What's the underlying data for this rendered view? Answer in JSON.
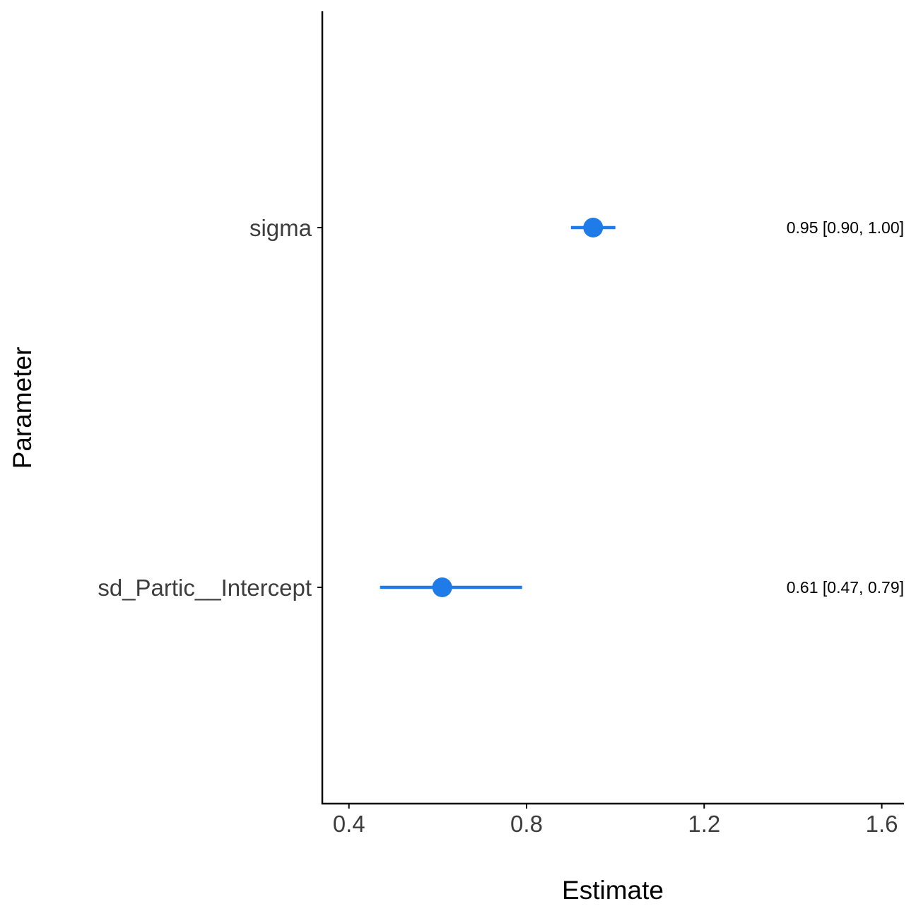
{
  "chart_data": {
    "type": "forest",
    "xlabel": "Estimate",
    "ylabel": "Parameter",
    "xlim": [
      0.34,
      1.65
    ],
    "x_ticks": [
      0.4,
      0.8,
      1.2,
      1.6
    ],
    "x_tick_labels": [
      "0.4",
      "0.8",
      "1.2",
      "1.6"
    ],
    "grid": false,
    "point_color": "#1e7be8",
    "axis_color": "#000000",
    "parameters": [
      {
        "name": "sigma",
        "estimate": 0.95,
        "ci_low": 0.9,
        "ci_high": 1.0,
        "label": "0.95 [0.90, 1.00]"
      },
      {
        "name": "sd_Partic__Intercept",
        "estimate": 0.61,
        "ci_low": 0.47,
        "ci_high": 0.79,
        "label": "0.61 [0.47, 0.79]"
      }
    ]
  }
}
